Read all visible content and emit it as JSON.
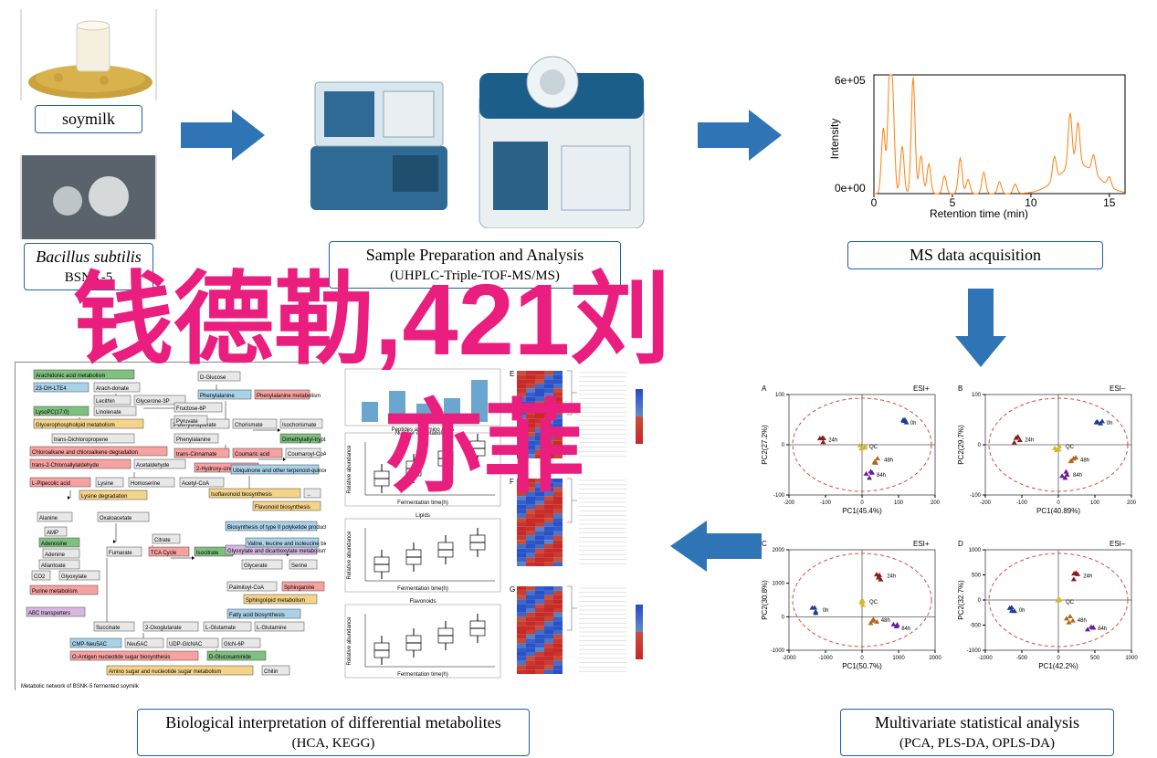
{
  "colors": {
    "arrow_fill": "#2f75b5",
    "panel_border": "#1f5fa8",
    "overlay_pink": "#e91e7e",
    "chromatogram_line": "#ff7f0e",
    "pca_ellipse": "#d94a3a",
    "pca_points": {
      "oh": "#1f3a93",
      "24h": "#8b1a1a",
      "48h": "#b5651d",
      "84h": "#6a1b9a",
      "qc": "#d4b82a"
    }
  },
  "top_row": {
    "soymilk": {
      "label": "soymilk"
    },
    "bacteria": {
      "line1": "Bacillus subtilis",
      "line2": "BSNK-5"
    },
    "instrument": {
      "line1": "Sample Preparation and Analysis",
      "line2": "(UHPLC-Triple-TOF-MS/MS)"
    },
    "ms_acq": {
      "label": "MS data acquisition"
    },
    "chromatogram": {
      "xlabel": "Retention time (min)",
      "ylabel": "Intensity",
      "ymax_label": "6e+05",
      "ymin_label": "0e+00",
      "xticks": [
        0,
        5,
        10,
        15
      ],
      "line_color": "#ff7f0e",
      "peaks_x": [
        0.6,
        1.0,
        1.2,
        1.8,
        2.5,
        3.0,
        3.5,
        4.5,
        5.5,
        6.0,
        7.0,
        8.0,
        9.0,
        11.5,
        12.5,
        13.0,
        14.0,
        15.0
      ],
      "peaks_h": [
        0.55,
        0.95,
        0.7,
        0.4,
        0.98,
        0.32,
        0.25,
        0.15,
        0.3,
        0.12,
        0.18,
        0.1,
        0.08,
        0.2,
        0.45,
        0.35,
        0.15,
        0.08
      ]
    }
  },
  "bottom_row": {
    "biointerp": {
      "line1": "Biological interpretation of differential metabolites",
      "line2": "(HCA, KEGG)"
    },
    "multivariate": {
      "line1": "Multivariate statistical analysis",
      "line2": "(PCA, PLS-DA, OPLS-DA)"
    }
  },
  "overlay": {
    "line1": "钱德勒,421刘",
    "line2": "亦菲"
  },
  "pca": {
    "panels": [
      {
        "tag": "A",
        "mode": "ESI+",
        "xaxis": "PC1(45.4%)",
        "yaxis": "PC2(27.2%)",
        "xlim": [
          -200,
          200
        ],
        "ylim": [
          -100,
          100
        ],
        "xticks": [
          -200,
          -100,
          0,
          100,
          200
        ],
        "yticks": [
          -100,
          0,
          100
        ]
      },
      {
        "tag": "B",
        "mode": "ESI–",
        "xaxis": "PC1(40.89%)",
        "yaxis": "PC2(29.7%)",
        "xlim": [
          -200,
          200
        ],
        "ylim": [
          -100,
          100
        ],
        "xticks": [
          -200,
          -100,
          0,
          100,
          200
        ],
        "yticks": [
          -100,
          0,
          100
        ]
      },
      {
        "tag": "C",
        "mode": "ESI+",
        "xaxis": "PC1(50.7%)",
        "yaxis": "PC2(30.8%)",
        "xlim": [
          -2000,
          2000
        ],
        "ylim": [
          -1000,
          2000
        ],
        "xticks": [
          -2000,
          -1000,
          0,
          1000,
          2000
        ],
        "yticks": [
          -1000,
          0,
          1000,
          2000
        ]
      },
      {
        "tag": "D",
        "mode": "ESI–",
        "xaxis": "PC1(42.2%)",
        "yaxis": "PC2(32.7%)",
        "xlim": [
          -1000,
          1000
        ],
        "ylim": [
          -1000,
          1000
        ],
        "xticks": [
          -1000,
          -500,
          0,
          500,
          1000
        ],
        "yticks": [
          -1000,
          -500,
          0,
          500,
          1000
        ]
      }
    ],
    "groups": [
      "0h",
      "24h",
      "48h",
      "84h",
      "QC"
    ]
  },
  "middle_charts": {
    "titles": [
      "Peptides and amino acids",
      "Lipids",
      "Flavonoids"
    ],
    "xlabel": "Fermentation time(h)"
  },
  "pathway": {
    "terms": [
      "Arachidonic acid metabolism",
      "23-OH-LTE4",
      "Lecithin",
      "Glycerone-3P",
      "Linolenate",
      "LysoPC(17:0)",
      "Glycerophospholipid metabolism",
      "trans-Dichloropropene",
      "Chloroalkane and chloroalkene degradation",
      "trans-2-Chloroallylaldehyde",
      "L-Pipecolic acid",
      "Lysine",
      "Lysine degradation",
      "Acetaldehyde",
      "Homoserine",
      "Acetyl-CoA",
      "Alanine",
      "Oxaloacetate",
      "AMP",
      "Adenosine",
      "Adenine",
      "Allantoate",
      "Fumarate",
      "TCA Cycle",
      "Isocitrate",
      "Glyoxylate",
      "Purine metabolism",
      "ABC transporters",
      "Succinate",
      "2-Oxoglutarate",
      "L-Glutamate",
      "L-Glutamine",
      "CMP-Neu5AC",
      "Neu5AC",
      "UDP-GlcNAC",
      "GlcN-6P",
      "O-Antigen nucleotide sugar biosynthesis",
      "D-Glucosaminide",
      "Amino sugar and nucleotide sugar metabolism",
      "Chitin",
      "D-Glucose",
      "Phenylalanine",
      "Phenylalanine metabolism",
      "Fructose-6P",
      "3-Dehydroquinate",
      "Chorismate",
      "Isochorismate",
      "trans-Cinnamate",
      "Coumaric acid",
      "Coumaroyl-CoA",
      "2-Hydroxy-cinnamic acid",
      "Dimethylallyl-tryptamine",
      "Ubiquinone and other terpenoid-quinone biosynthesis",
      "Isoflavonoid biosynthesis",
      "Flavonoid biosynthesis",
      "Biosynthesis of type II polyketide products",
      "Glyoxylate and dicarboxylate metabolism",
      "Glycerate",
      "Serine",
      "Valine, leucine and isoleucine biosynthesis",
      "Palmitoyl-CoA",
      "Sphinganine",
      "Sphingolipid metabolism",
      "Fatty acid biosynthesis",
      "Pyruvate",
      "Citrate",
      "CO2"
    ]
  }
}
